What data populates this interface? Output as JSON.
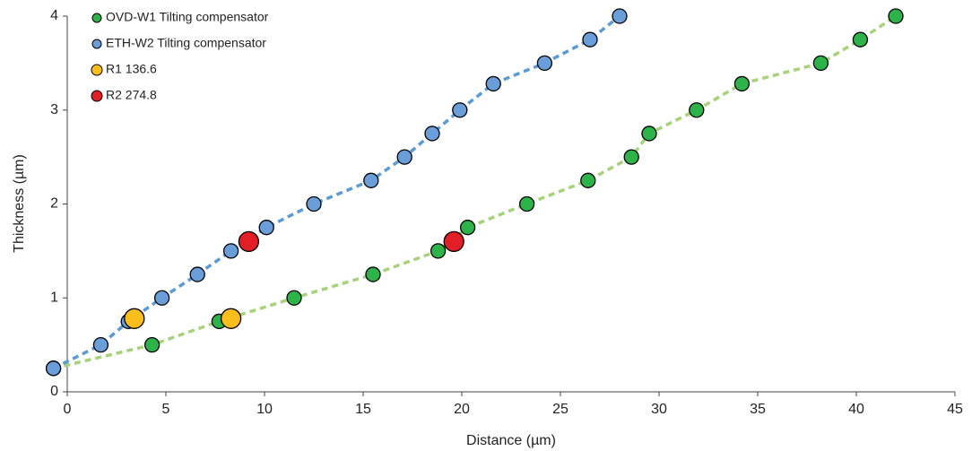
{
  "chart_data": {
    "type": "scatter",
    "x_label": "Distance (µm)",
    "y_label": "Thickness (µm)",
    "xlim": [
      0,
      45
    ],
    "xticks": [
      0,
      5,
      10,
      15,
      20,
      25,
      30,
      35,
      40,
      45
    ],
    "ylim": [
      0,
      4
    ],
    "yticks": [
      0,
      1,
      2,
      3,
      4
    ],
    "grid": false,
    "legend": "top-left",
    "series": [
      {
        "name": "OVD-W1 Tilting compensator",
        "color": "#2db34a",
        "line_color": "#a6d279",
        "dashed_line": true,
        "marker_size": 8,
        "x": [
          -0.7,
          4.3,
          7.7,
          11.5,
          15.5,
          18.8,
          20.3,
          23.3,
          26.4,
          28.6,
          29.5,
          31.9,
          34.2,
          38.2,
          40.2,
          42.0
        ],
        "values": [
          0.25,
          0.5,
          0.75,
          1.0,
          1.25,
          1.5,
          1.75,
          2.0,
          2.25,
          2.5,
          2.75,
          3.0,
          3.28,
          3.5,
          3.75,
          4.0
        ]
      },
      {
        "name": "ETH-W2 Tilting compensator",
        "color": "#6a9ed9",
        "line_color": "#5b9bd5",
        "dashed_line": true,
        "marker_size": 8,
        "x": [
          -0.7,
          1.7,
          3.1,
          4.8,
          6.6,
          8.3,
          10.1,
          12.5,
          15.4,
          17.1,
          18.5,
          19.9,
          21.6,
          24.2,
          26.5,
          28.0
        ],
        "values": [
          0.25,
          0.5,
          0.75,
          1.0,
          1.25,
          1.5,
          1.75,
          2.0,
          2.25,
          2.5,
          2.75,
          3.0,
          3.28,
          3.5,
          3.75,
          4.0
        ]
      },
      {
        "name": "R1 136.6",
        "color": "#f9bd1c",
        "dashed_line": false,
        "marker_size": 11,
        "x": [
          3.4,
          8.3
        ],
        "values": [
          0.78,
          0.78
        ]
      },
      {
        "name": "R2 274.8",
        "color": "#e21f26",
        "dashed_line": false,
        "marker_size": 11,
        "x": [
          9.2,
          19.6
        ],
        "values": [
          1.6,
          1.6
        ]
      }
    ]
  }
}
